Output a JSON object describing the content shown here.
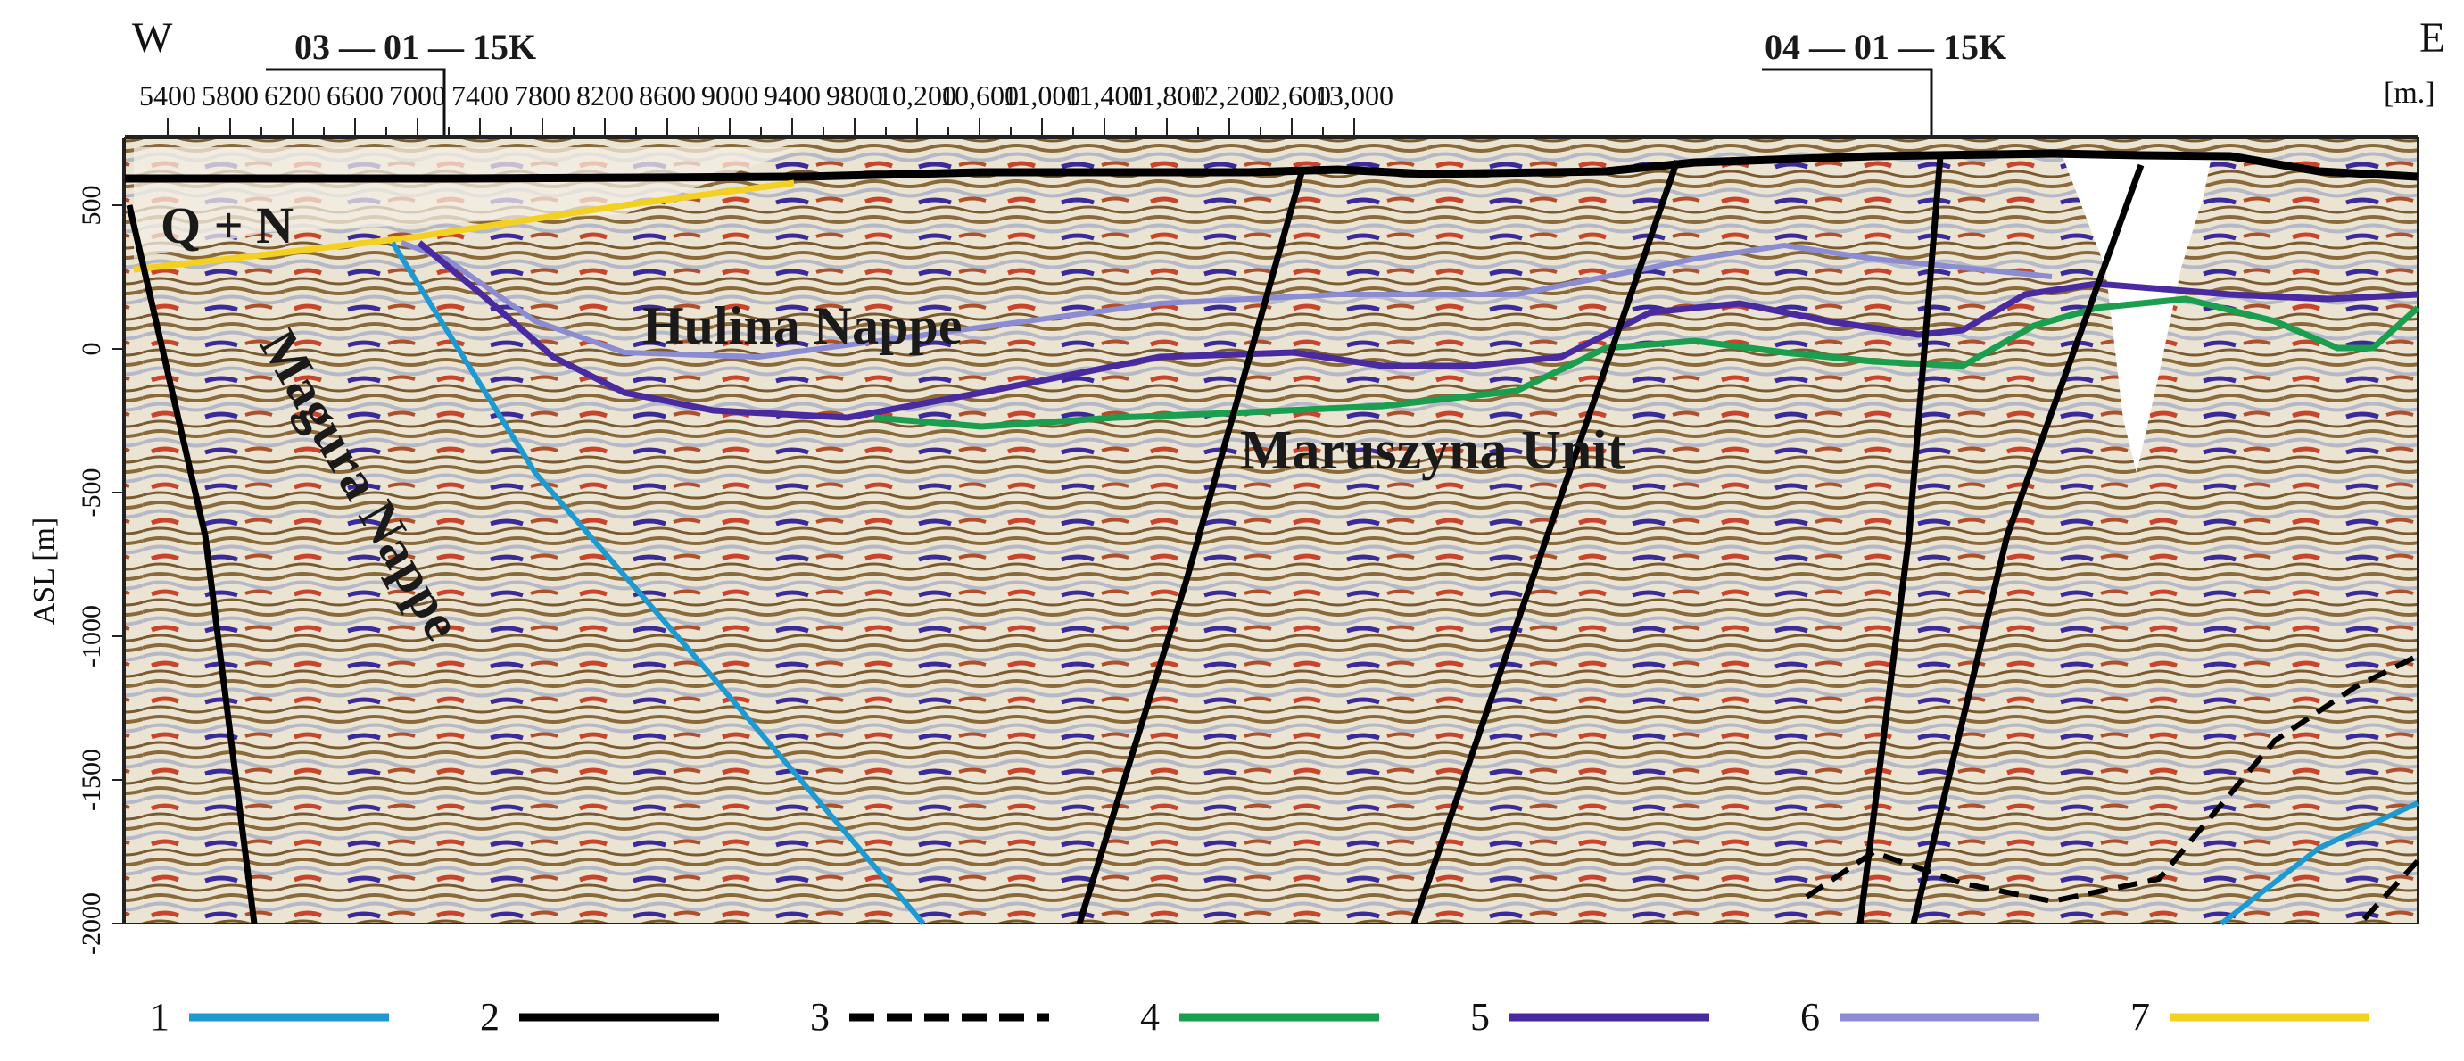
{
  "header": {
    "west_label": "W",
    "east_label": "E",
    "well_left": "03 — 01 — 15K",
    "well_right": "04 — 01 — 15K",
    "distance_unit": "[m.]"
  },
  "distance_ticks": [
    "5400",
    "5800",
    "6200",
    "6600",
    "7000",
    "7400",
    "7800",
    "8200",
    "8600",
    "9000",
    "9400",
    "9800",
    "10,200",
    "10,600",
    "11,000",
    "11,400",
    "11,800",
    "12,200",
    "12,600",
    "13,000"
  ],
  "depth_axis": {
    "title": "ASL [m]",
    "ticks": [
      "500",
      "0",
      "-500",
      "-1000",
      "-1500",
      "-2000"
    ]
  },
  "unit_labels": {
    "qn": "Q + N",
    "hulina": "Hulina  Nappe",
    "magura": "Magura Nappe",
    "maruszyna": "Maruszyna Unit"
  },
  "legend": [
    {
      "num": "1",
      "color": "#1e9ad0",
      "dash": false
    },
    {
      "num": "2",
      "color": "#000000",
      "dash": false
    },
    {
      "num": "3",
      "color": "#000000",
      "dash": true
    },
    {
      "num": "4",
      "color": "#1a9e4f",
      "dash": false
    },
    {
      "num": "5",
      "color": "#4a2aa0",
      "dash": false
    },
    {
      "num": "6",
      "color": "#8c8cd2",
      "dash": false
    },
    {
      "num": "7",
      "color": "#f4d020",
      "dash": false
    }
  ]
}
